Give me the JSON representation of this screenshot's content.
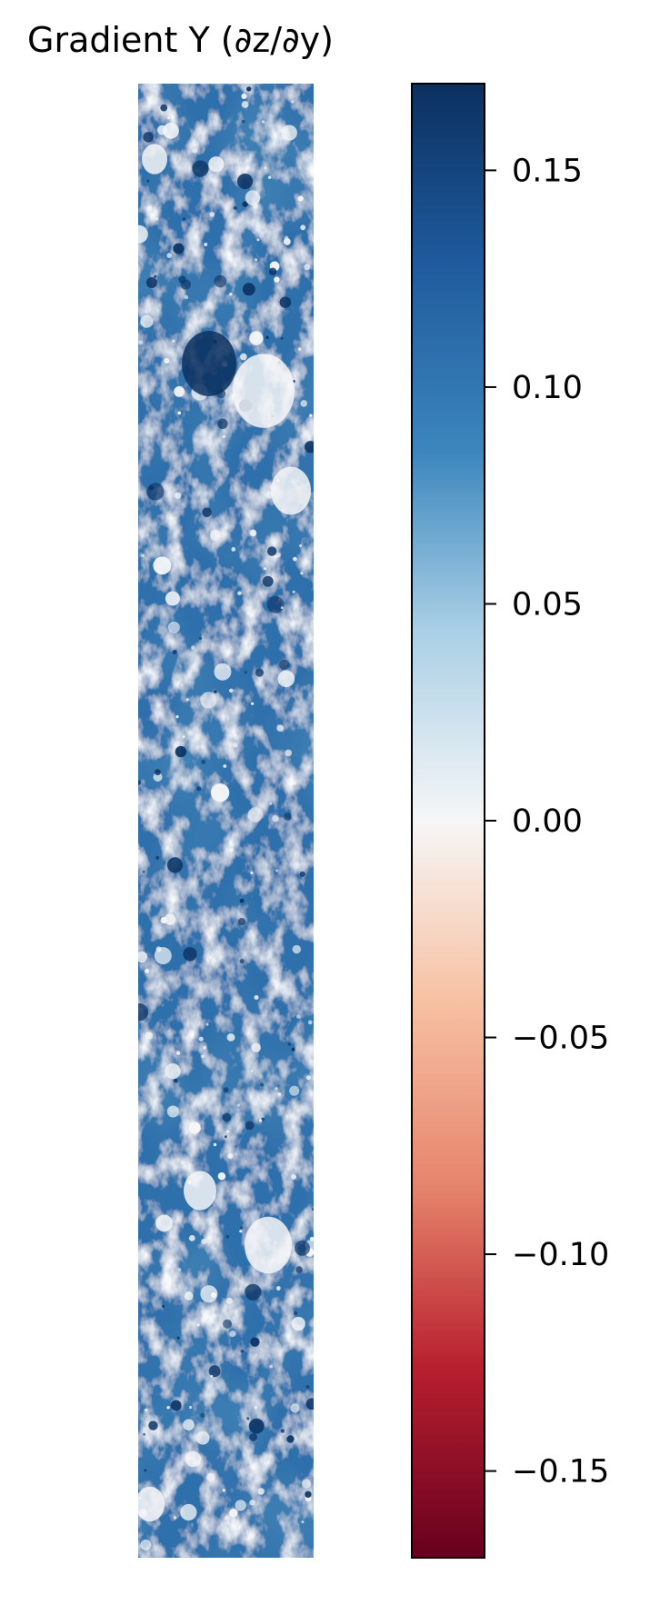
{
  "chart_data": {
    "type": "heatmap",
    "title": "Gradient Y (∂z/∂y)",
    "xlabel": "",
    "ylabel": "",
    "colormap": "RdBu",
    "colorbar": {
      "range": [
        -0.17,
        0.17
      ],
      "ticks": [
        0.15,
        0.1,
        0.05,
        0.0,
        -0.05,
        -0.1,
        -0.15
      ],
      "tick_labels": [
        "0.15",
        "0.10",
        "0.05",
        "0.00",
        "−0.05",
        "−0.10",
        "−0.15"
      ],
      "colors": {
        "high": "#0b305f",
        "mid_high": "#3c86bd",
        "light_blue": "#a9cfe5",
        "zero": "#f6f6f6",
        "light_red": "#f7c2a4",
        "mid_low": "#d6604d",
        "low": "#67001f"
      }
    },
    "image_description_value_range": [
      0.0,
      0.17
    ],
    "axes_visible": false
  }
}
